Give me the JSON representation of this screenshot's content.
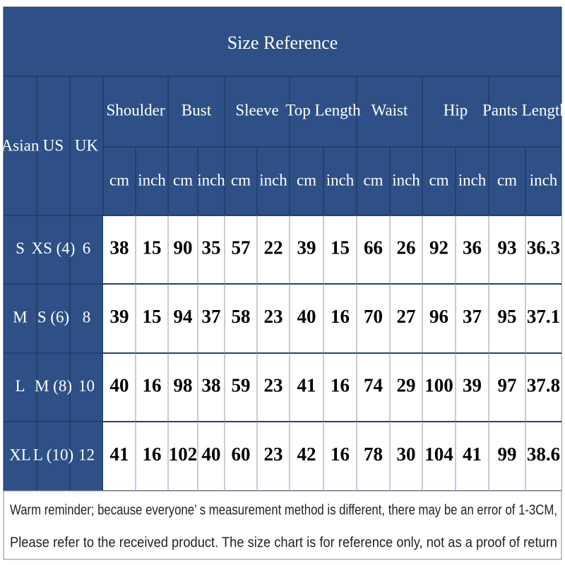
{
  "header": {
    "title": "Size Reference"
  },
  "table": {
    "size_labels": [
      "Asian",
      "US",
      "UK"
    ],
    "groups": [
      {
        "name": "Shoulder",
        "units": [
          "cm",
          "inch"
        ]
      },
      {
        "name": "Bust",
        "units": [
          "cm",
          "inch"
        ]
      },
      {
        "name": "Sleeve",
        "units": [
          "cm",
          "inch"
        ]
      },
      {
        "name": "Top Length",
        "units": [
          "cm",
          "inch"
        ]
      },
      {
        "name": "Waist",
        "units": [
          "cm",
          "inch"
        ]
      },
      {
        "name": "Hip",
        "units": [
          "cm",
          "inch"
        ]
      },
      {
        "name": "Pants Length",
        "units": [
          "cm",
          "inch"
        ]
      }
    ],
    "rows": [
      {
        "asian": "S",
        "us": "XS (4)",
        "uk": "6",
        "values": [
          38,
          15,
          90,
          35,
          57,
          22,
          39,
          15,
          66,
          26,
          92,
          36,
          93,
          36.3
        ]
      },
      {
        "asian": "M",
        "us": "S (6)",
        "uk": "8",
        "values": [
          39,
          15,
          94,
          37,
          58,
          23,
          40,
          16,
          70,
          27,
          96,
          37,
          95,
          37.1
        ]
      },
      {
        "asian": "L",
        "us": "M (8)",
        "uk": "10",
        "values": [
          40,
          16,
          98,
          38,
          59,
          23,
          41,
          16,
          74,
          29,
          100,
          39,
          97,
          37.8
        ]
      },
      {
        "asian": "XL",
        "us": "L (10)",
        "uk": "12",
        "values": [
          41,
          16,
          102,
          40,
          60,
          23,
          42,
          16,
          78,
          30,
          104,
          41,
          99,
          38.6
        ]
      }
    ]
  },
  "footer": {
    "lines": [
      "Warm reminder; because everyone’ s measurement method is different, there may be an error of 1-3CM,",
      "Please refer to the received product. The size chart is for reference only, not as a proof of return"
    ]
  }
}
